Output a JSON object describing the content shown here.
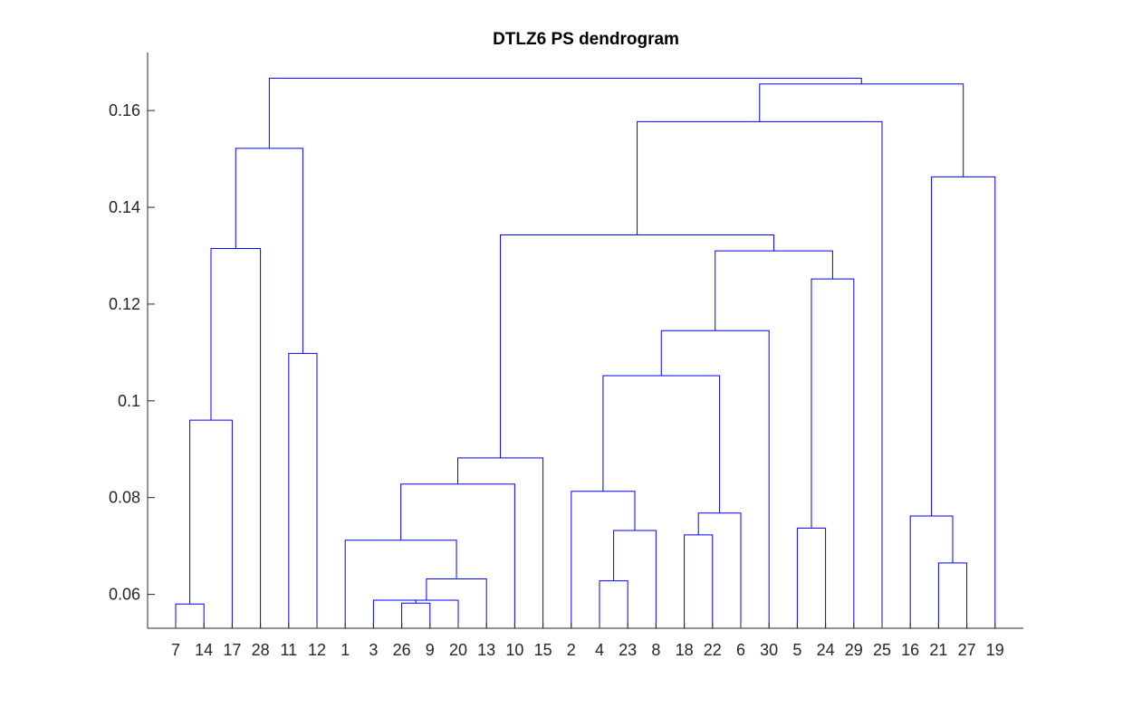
{
  "chart_data": {
    "type": "dendrogram",
    "title": "DTLZ6 PS dendrogram",
    "xlabel": "",
    "ylabel": "",
    "ylim": [
      0.053,
      0.172
    ],
    "yticks": [
      0.06,
      0.08,
      0.1,
      0.12,
      0.14,
      0.16
    ],
    "ytick_labels": [
      "0.06",
      "0.08",
      "0.1",
      "0.12",
      "0.14",
      "0.16"
    ],
    "leaf_order": [
      "7",
      "14",
      "17",
      "28",
      "11",
      "12",
      "1",
      "3",
      "26",
      "9",
      "20",
      "13",
      "10",
      "15",
      "2",
      "4",
      "23",
      "8",
      "18",
      "22",
      "6",
      "30",
      "5",
      "24",
      "29",
      "25",
      "16",
      "21",
      "27",
      "19"
    ],
    "link_color": "#0000ff",
    "merges": [
      {
        "id": "A",
        "left": "26",
        "right": "9",
        "height": 0.0582
      },
      {
        "id": "B",
        "left": "3",
        "right": "A",
        "height": 0.0588
      },
      {
        "id": "C",
        "left": "7",
        "right": "14",
        "height": 0.058
      },
      {
        "id": "D",
        "left": "C",
        "right": "17",
        "height": 0.096
      },
      {
        "id": "E",
        "left": "D",
        "right": "28",
        "height": 0.1315
      },
      {
        "id": "F",
        "left": "11",
        "right": "12",
        "height": 0.1098
      },
      {
        "id": "G",
        "left": "E",
        "right": "F",
        "height": 0.1522
      },
      {
        "id": "H",
        "left": "B",
        "right": "20",
        "height": 0.0588
      },
      {
        "id": "I",
        "left": "H",
        "right": "13",
        "height": 0.0632
      },
      {
        "id": "J",
        "left": "1",
        "right": "I",
        "height": 0.0712
      },
      {
        "id": "K",
        "left": "J",
        "right": "10",
        "height": 0.0828
      },
      {
        "id": "L",
        "left": "K",
        "right": "15",
        "height": 0.0882
      },
      {
        "id": "M",
        "left": "4",
        "right": "23",
        "height": 0.0628
      },
      {
        "id": "N",
        "left": "M",
        "right": "8",
        "height": 0.0732
      },
      {
        "id": "O",
        "left": "2",
        "right": "N",
        "height": 0.0813
      },
      {
        "id": "P",
        "left": "18",
        "right": "22",
        "height": 0.0723
      },
      {
        "id": "Q",
        "left": "P",
        "right": "6",
        "height": 0.0768
      },
      {
        "id": "R",
        "left": "O",
        "right": "Q",
        "height": 0.1052
      },
      {
        "id": "S",
        "left": "R",
        "right": "30",
        "height": 0.1145
      },
      {
        "id": "T",
        "left": "5",
        "right": "24",
        "height": 0.0737
      },
      {
        "id": "U",
        "left": "T",
        "right": "29",
        "height": 0.1252
      },
      {
        "id": "V",
        "left": "S",
        "right": "U",
        "height": 0.131
      },
      {
        "id": "W",
        "left": "L",
        "right": "V",
        "height": 0.1343
      },
      {
        "id": "X",
        "left": "W",
        "right": "25",
        "height": 0.1577
      },
      {
        "id": "Y",
        "left": "21",
        "right": "27",
        "height": 0.0665
      },
      {
        "id": "Z",
        "left": "16",
        "right": "Y",
        "height": 0.0762
      },
      {
        "id": "AA",
        "left": "Z",
        "right": "19",
        "height": 0.1463
      },
      {
        "id": "AB",
        "left": "X",
        "right": "AA",
        "height": 0.1655
      },
      {
        "id": "AC",
        "left": "G",
        "right": "AB",
        "height": 0.1667
      }
    ]
  }
}
